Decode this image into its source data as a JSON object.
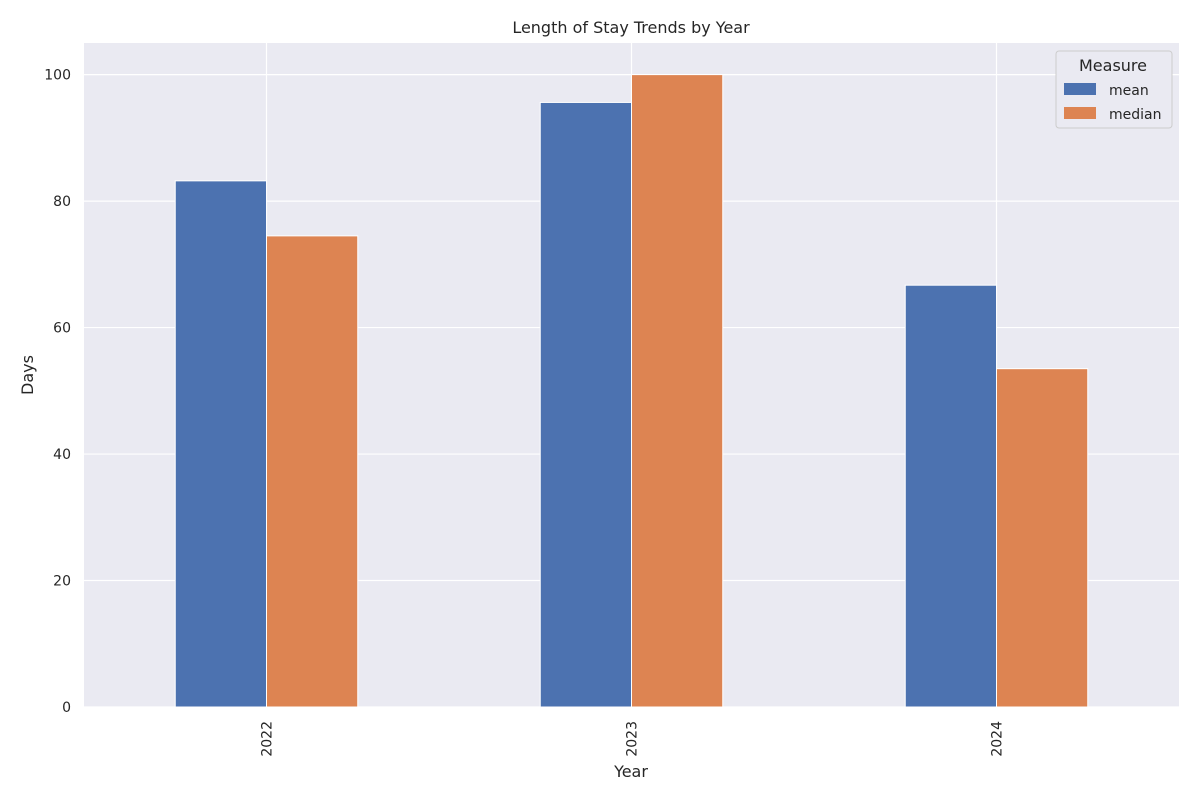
{
  "chart_data": {
    "type": "bar",
    "title": "Length of Stay Trends by Year",
    "xlabel": "Year",
    "ylabel": "Days",
    "categories": [
      "2022",
      "2023",
      "2024"
    ],
    "series": [
      {
        "name": "mean",
        "values": [
          83.2,
          95.6,
          66.7
        ]
      },
      {
        "name": "median",
        "values": [
          74.5,
          100.0,
          53.5
        ]
      }
    ],
    "ylim": [
      0,
      105
    ],
    "yticks": [
      0,
      20,
      40,
      60,
      80,
      100
    ],
    "grid": true,
    "legend": {
      "title": "Measure",
      "position": "top-right"
    },
    "colors": {
      "background": "#eaeaf2",
      "grid": "#ffffff",
      "mean": "#4c72b0",
      "median": "#dd8452"
    }
  }
}
